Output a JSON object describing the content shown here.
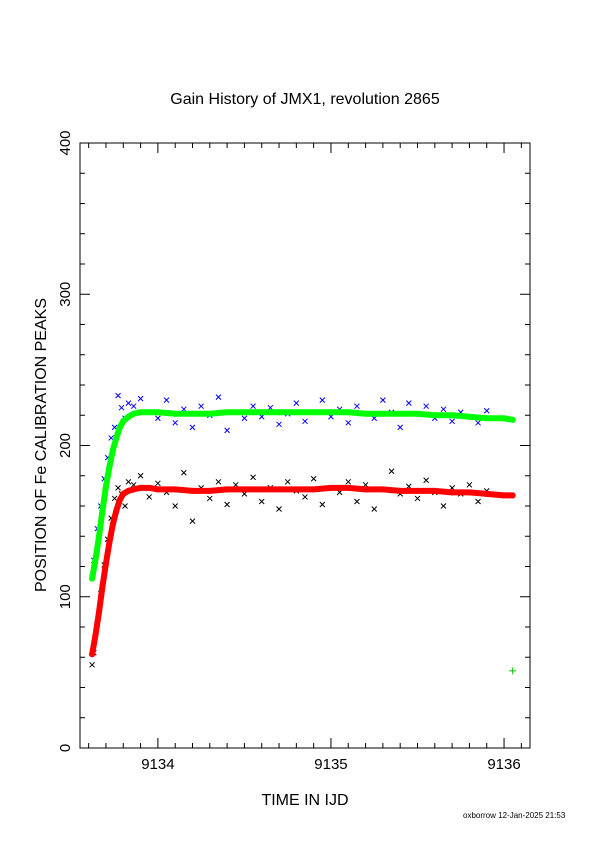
{
  "chart_data": {
    "type": "scatter",
    "title": "Gain History of JMX1, revolution 2865",
    "xlabel": "TIME IN IJD",
    "ylabel": "POSITION OF Fe CALIBRATION PEAKS",
    "xlim": [
      9133.55,
      9136.15
    ],
    "ylim": [
      0,
      400
    ],
    "x_ticks": [
      9134,
      9135,
      9136
    ],
    "x_tick_labels": [
      "9134",
      "9135",
      "9136"
    ],
    "y_ticks": [
      0,
      100,
      200,
      300,
      400
    ],
    "y_tick_labels": [
      "0",
      "100",
      "200",
      "300",
      "400"
    ],
    "grid": false,
    "legend": "none",
    "series": [
      {
        "marker": "x",
        "color": "#0000ff",
        "x": [
          9133.62,
          9133.63,
          9133.65,
          9133.67,
          9133.69,
          9133.71,
          9133.73,
          9133.75,
          9133.77,
          9133.79,
          9133.81,
          9133.83,
          9133.86,
          9133.9,
          9133.95,
          9134.0,
          9134.05,
          9134.1,
          9134.15,
          9134.2,
          9134.25,
          9134.3,
          9134.35,
          9134.4,
          9134.45,
          9134.5,
          9134.55,
          9134.6,
          9134.65,
          9134.7,
          9134.75,
          9134.8,
          9134.85,
          9134.9,
          9134.95,
          9135.0,
          9135.05,
          9135.1,
          9135.15,
          9135.2,
          9135.25,
          9135.3,
          9135.35,
          9135.4,
          9135.45,
          9135.5,
          9135.55,
          9135.6,
          9135.65,
          9135.7,
          9135.75,
          9135.8,
          9135.85,
          9135.9
        ],
        "y": [
          113,
          124,
          145,
          160,
          178,
          192,
          205,
          212,
          233,
          225,
          218,
          228,
          226,
          231,
          222,
          218,
          230,
          215,
          224,
          212,
          226,
          220,
          232,
          210,
          222,
          218,
          226,
          219,
          225,
          214,
          221,
          228,
          216,
          222,
          230,
          219,
          224,
          215,
          226,
          221,
          218,
          230,
          222,
          212,
          228,
          221,
          226,
          218,
          224,
          216,
          222,
          219,
          215,
          223
        ]
      },
      {
        "marker": "x",
        "color": "#000000",
        "x": [
          9133.62,
          9133.63,
          9133.65,
          9133.67,
          9133.69,
          9133.71,
          9133.73,
          9133.75,
          9133.77,
          9133.79,
          9133.81,
          9133.83,
          9133.86,
          9133.9,
          9133.95,
          9134.0,
          9134.05,
          9134.1,
          9134.15,
          9134.2,
          9134.25,
          9134.3,
          9134.35,
          9134.4,
          9134.45,
          9134.5,
          9134.55,
          9134.6,
          9134.65,
          9134.7,
          9134.75,
          9134.8,
          9134.85,
          9134.9,
          9134.95,
          9135.0,
          9135.05,
          9135.1,
          9135.15,
          9135.2,
          9135.25,
          9135.3,
          9135.35,
          9135.4,
          9135.45,
          9135.5,
          9135.55,
          9135.6,
          9135.65,
          9135.7,
          9135.75,
          9135.8,
          9135.85,
          9135.9
        ],
        "y": [
          55,
          63,
          82,
          102,
          121,
          138,
          152,
          165,
          172,
          168,
          160,
          176,
          174,
          180,
          166,
          175,
          169,
          160,
          182,
          150,
          172,
          165,
          176,
          161,
          174,
          168,
          179,
          163,
          172,
          158,
          176,
          170,
          166,
          178,
          161,
          172,
          169,
          176,
          163,
          174,
          158,
          171,
          183,
          168,
          173,
          165,
          177,
          169,
          160,
          172,
          168,
          174,
          163,
          170
        ]
      },
      {
        "marker": "dot",
        "color": "#00ff00",
        "x": [
          9133.62,
          9133.64,
          9133.66,
          9133.68,
          9133.7,
          9133.72,
          9133.74,
          9133.76,
          9133.78,
          9133.8,
          9133.83,
          9133.86,
          9133.9,
          9133.95,
          9134.0,
          9134.1,
          9134.2,
          9134.3,
          9134.4,
          9134.5,
          9134.6,
          9134.7,
          9134.8,
          9134.9,
          9135.0,
          9135.1,
          9135.2,
          9135.3,
          9135.4,
          9135.5,
          9135.6,
          9135.7,
          9135.8,
          9135.9,
          9136.0,
          9136.05
        ],
        "y": [
          112,
          125,
          140,
          157,
          173,
          186,
          197,
          205,
          212,
          216,
          219,
          221,
          222,
          222,
          222,
          221,
          221,
          221,
          222,
          222,
          222,
          222,
          222,
          222,
          222,
          222,
          221,
          221,
          221,
          221,
          220,
          220,
          219,
          218,
          218,
          217
        ]
      },
      {
        "marker": "dot",
        "color": "#ff0000",
        "x": [
          9133.62,
          9133.64,
          9133.66,
          9133.68,
          9133.7,
          9133.72,
          9133.74,
          9133.76,
          9133.78,
          9133.8,
          9133.83,
          9133.86,
          9133.9,
          9133.95,
          9134.0,
          9134.1,
          9134.2,
          9134.3,
          9134.4,
          9134.5,
          9134.6,
          9134.7,
          9134.8,
          9134.9,
          9135.0,
          9135.1,
          9135.2,
          9135.3,
          9135.4,
          9135.5,
          9135.6,
          9135.7,
          9135.8,
          9135.9,
          9136.0,
          9136.05
        ],
        "y": [
          62,
          75,
          90,
          107,
          122,
          136,
          148,
          157,
          164,
          168,
          170,
          171,
          172,
          172,
          171,
          171,
          170,
          170,
          171,
          171,
          171,
          171,
          171,
          171,
          172,
          172,
          171,
          171,
          170,
          170,
          170,
          169,
          169,
          168,
          167,
          167
        ]
      },
      {
        "marker": "plus",
        "color": "#00c000",
        "x": [
          9136.05
        ],
        "y": [
          51
        ]
      }
    ]
  },
  "footer": {
    "text": "oxborrow 12-Jan-2025 21:53"
  }
}
